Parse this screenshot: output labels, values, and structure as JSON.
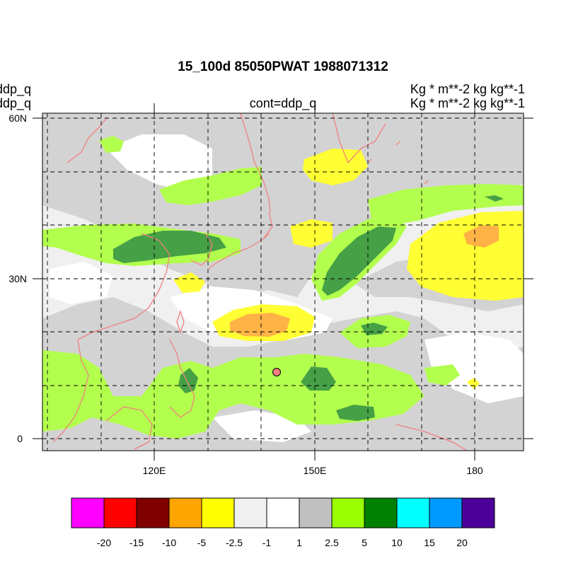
{
  "header": {
    "title": "15_100d 85050PWAT  1988071312",
    "left_line1": "ddp_q",
    "left_line2": "ddp_q",
    "center": "cont=ddp_q",
    "right_line1": "Kg  * m**-2 kg kg**-1",
    "right_line2": "Kg  * m**-2 kg kg**-1"
  },
  "map": {
    "lat_labels": [
      "60N",
      "30N",
      "0"
    ],
    "lon_labels": [
      "120E",
      "150E",
      "180"
    ],
    "marker": {
      "lon": 144,
      "lat": 12,
      "color": "#f08080"
    },
    "coastline_color": "#f08080"
  },
  "colorbar": {
    "labels": [
      "-20",
      "-15",
      "-10",
      "-5",
      "-2.5",
      "-1",
      "1",
      "2.5",
      "5",
      "10",
      "15",
      "20"
    ],
    "colors": [
      "#ff00ff",
      "#ff0000",
      "#800000",
      "#ffa500",
      "#ffff00",
      "#f0f0f0",
      "#ffffff",
      "#c0c0c0",
      "#99ff00",
      "#008000",
      "#00ffff",
      "#0099ff",
      "#4b0099"
    ]
  }
}
